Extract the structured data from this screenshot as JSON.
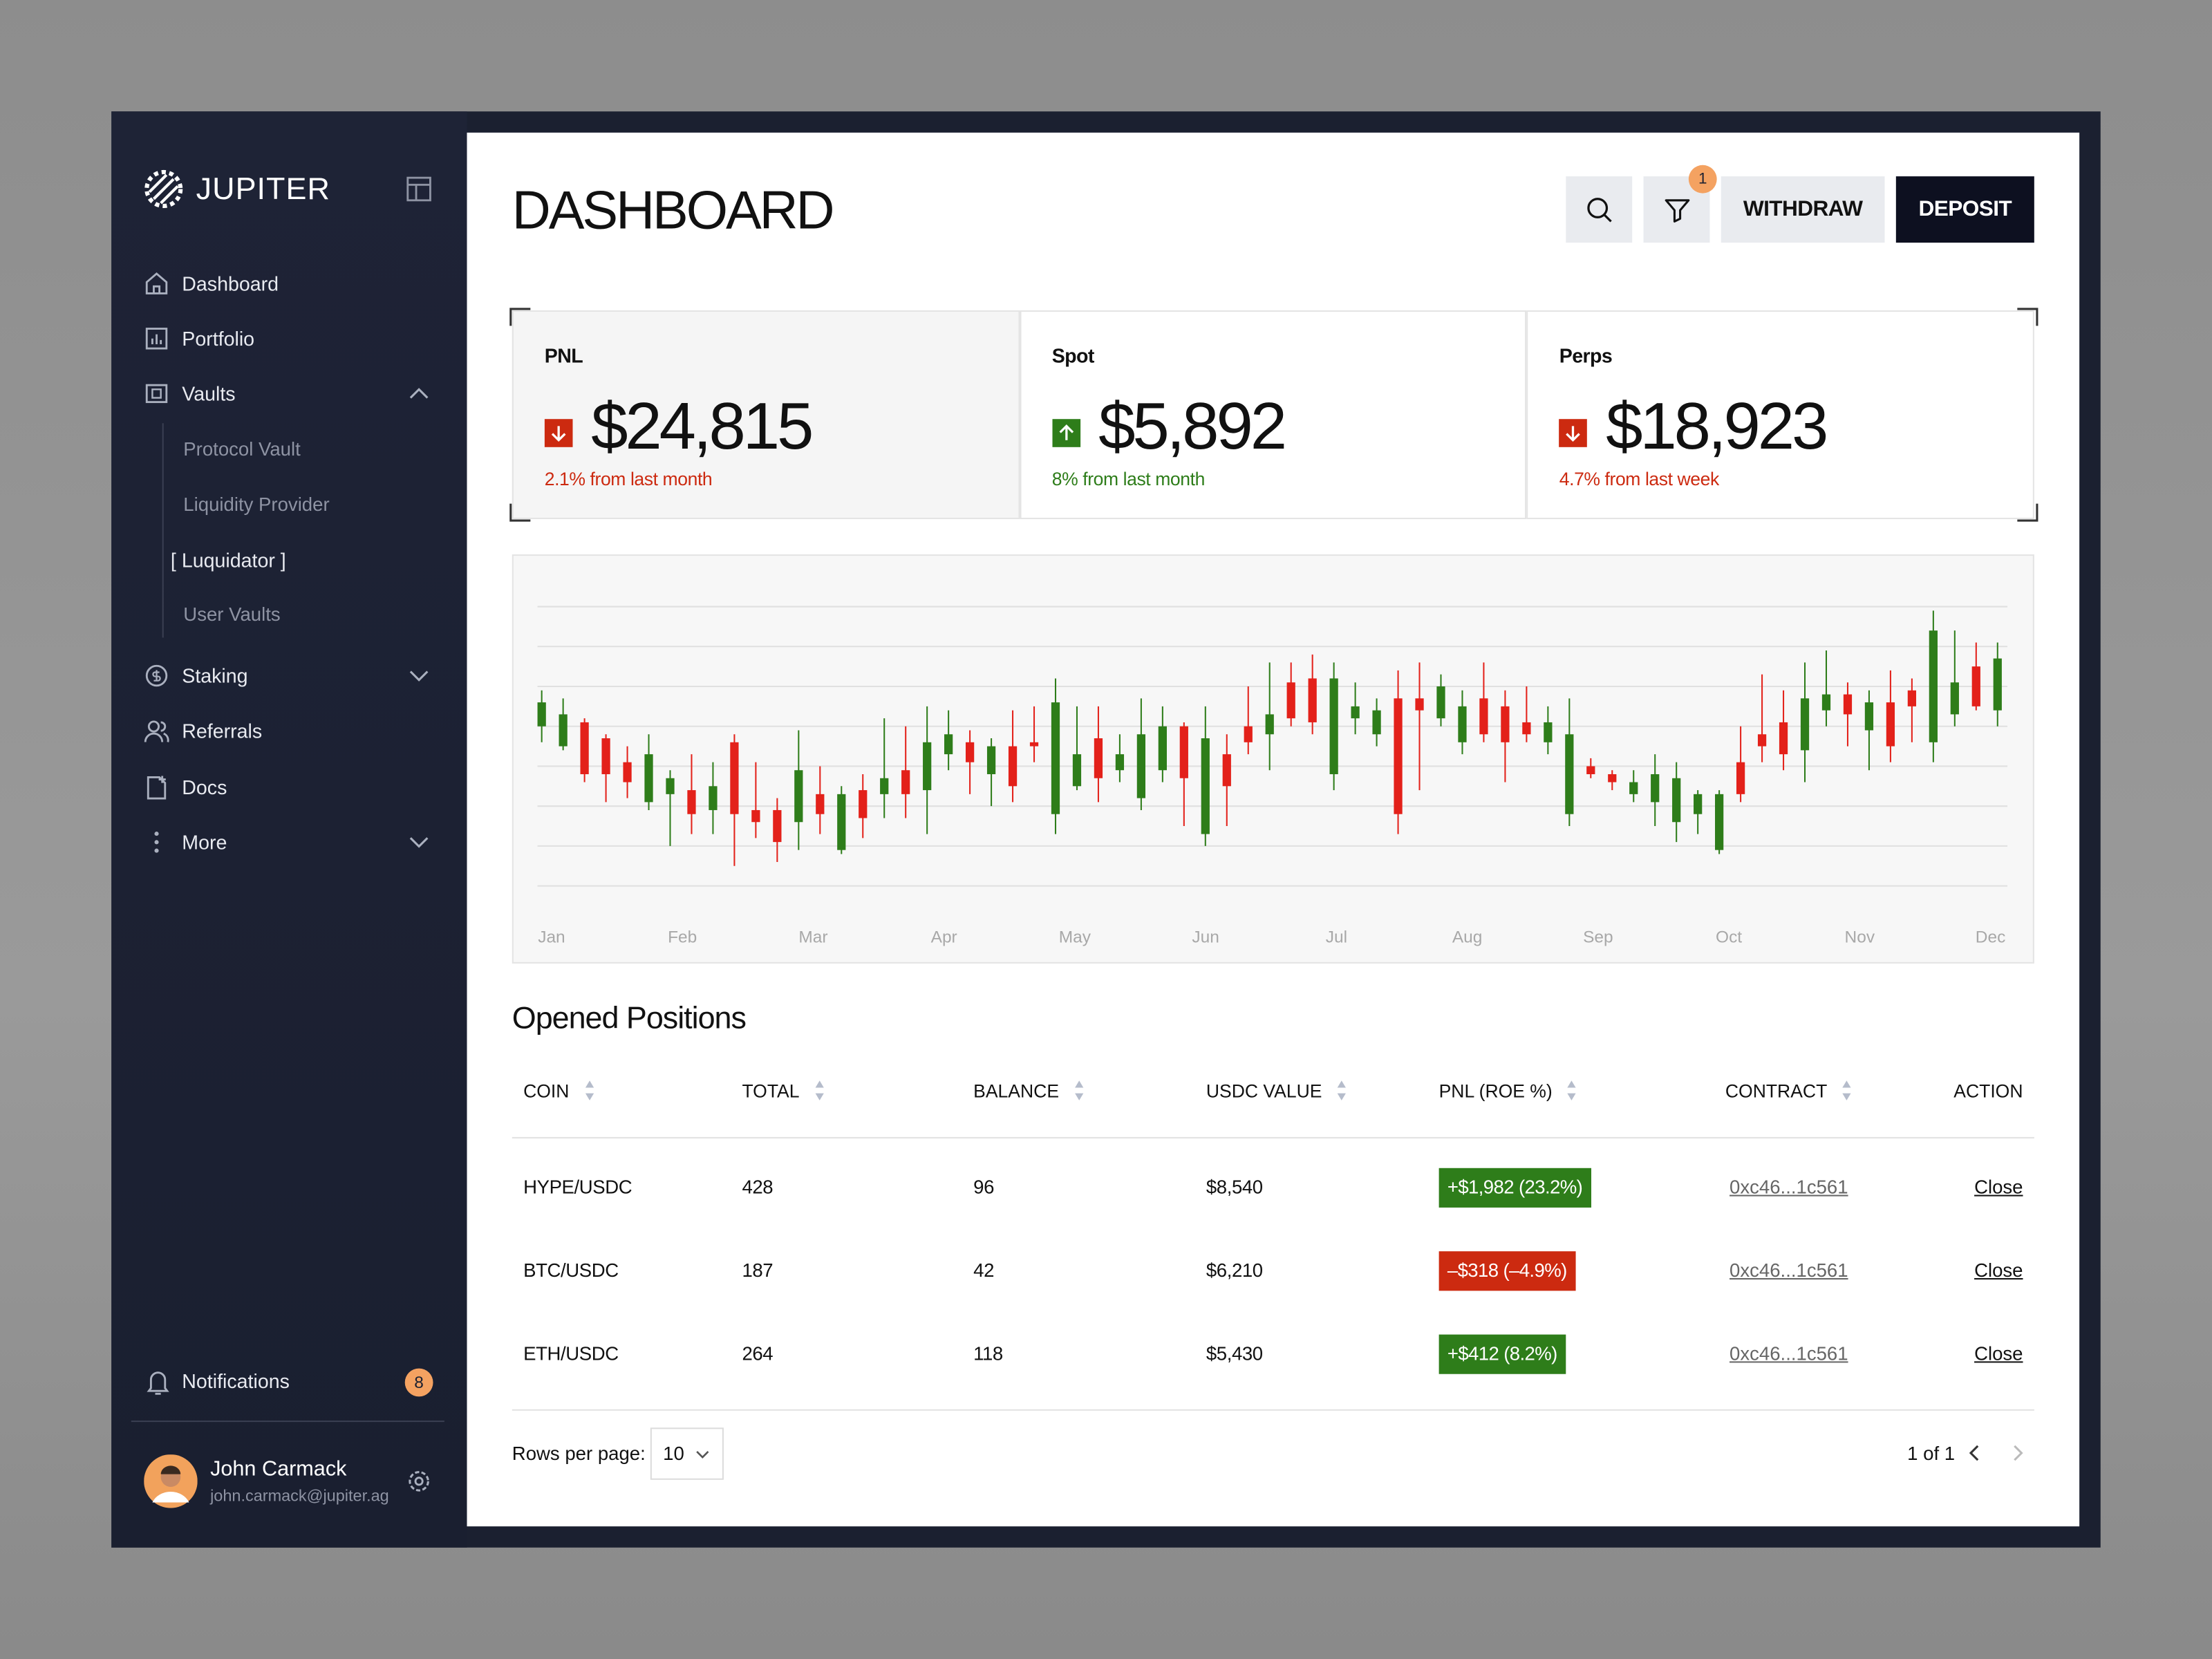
{
  "sidebar": {
    "brand": "JUPITER",
    "nav": [
      {
        "label": "Dashboard",
        "icon": "home"
      },
      {
        "label": "Portfolio",
        "icon": "chart"
      },
      {
        "label": "Vaults",
        "icon": "vault",
        "chevron": "up"
      },
      {
        "label": "Protocol Vault",
        "sub": true
      },
      {
        "label": "Liquidity Provider",
        "sub": true
      },
      {
        "label": "[ Luquidator ]",
        "sub": true,
        "active": true
      },
      {
        "label": "User Vaults",
        "sub": true
      },
      {
        "label": "Staking",
        "icon": "coin",
        "chevron": "down"
      },
      {
        "label": "Referrals",
        "icon": "users"
      },
      {
        "label": "Docs",
        "icon": "doc"
      },
      {
        "label": "More",
        "icon": "dots",
        "chevron": "down"
      }
    ],
    "notifications": {
      "label": "Notifications",
      "count": "8"
    },
    "user": {
      "name": "John Carmack",
      "email": "john.carmack@jupiter.ag"
    }
  },
  "header": {
    "title": "DASHBOARD",
    "filter_badge": "1",
    "withdraw": "WITHDRAW",
    "deposit": "DEPOSIT"
  },
  "stats": [
    {
      "label": "PNL",
      "value": "$24,815",
      "change": "2.1% from last month",
      "direction": "down"
    },
    {
      "label": "Spot",
      "value": "$5,892",
      "change": "8% from last month",
      "direction": "up"
    },
    {
      "label": "Perps",
      "value": "$18,923",
      "change": "4.7% from last week",
      "direction": "down"
    }
  ],
  "chart_data": {
    "type": "candlestick",
    "x_labels": [
      "Jan",
      "Feb",
      "Mar",
      "Apr",
      "May",
      "Jun",
      "Jul",
      "Aug",
      "Sep",
      "Oct",
      "Nov",
      "Dec"
    ],
    "open": [
      40,
      35,
      41,
      37,
      31,
      21,
      23,
      24,
      19,
      36,
      19,
      19,
      16,
      23,
      9,
      24,
      23,
      29,
      24,
      33,
      36,
      28,
      35,
      36,
      18,
      25,
      37,
      29,
      22,
      29,
      40,
      13,
      33,
      40,
      38,
      51,
      52,
      28,
      42,
      38,
      47,
      47,
      42,
      36,
      47,
      45,
      41,
      36,
      18,
      30,
      28,
      23,
      21,
      16,
      18,
      9,
      31,
      38,
      41,
      34,
      44,
      48,
      39,
      46,
      49,
      36,
      43,
      55,
      44
    ],
    "high": [
      49,
      47,
      42,
      38,
      35,
      38,
      29,
      33,
      31,
      38,
      31,
      22,
      39,
      30,
      25,
      28,
      42,
      40,
      45,
      44,
      39,
      37,
      44,
      45,
      52,
      45,
      45,
      38,
      47,
      45,
      41,
      45,
      38,
      50,
      56,
      56,
      58,
      56,
      51,
      47,
      54,
      56,
      53,
      49,
      56,
      49,
      50,
      45,
      47,
      32,
      29,
      29,
      33,
      31,
      24,
      24,
      40,
      53,
      49,
      56,
      59,
      51,
      49,
      54,
      52,
      69,
      64,
      61,
      61
    ],
    "low": [
      36,
      34,
      26,
      21,
      22,
      19,
      10,
      13,
      13,
      5,
      12,
      6,
      9,
      13,
      8,
      12,
      17,
      17,
      13,
      29,
      23,
      20,
      21,
      31,
      13,
      24,
      21,
      26,
      19,
      26,
      15,
      10,
      15,
      33,
      29,
      40,
      38,
      24,
      38,
      35,
      13,
      24,
      40,
      33,
      36,
      26,
      36,
      33,
      15,
      27,
      24,
      21,
      15,
      11,
      13,
      8,
      21,
      31,
      29,
      26,
      40,
      35,
      29,
      31,
      36,
      31,
      40,
      44,
      40
    ],
    "close": [
      46,
      43,
      28,
      28,
      26,
      33,
      27,
      18,
      25,
      18,
      16,
      11,
      29,
      18,
      23,
      17,
      27,
      23,
      36,
      38,
      31,
      35,
      25,
      35,
      46,
      33,
      27,
      33,
      38,
      40,
      27,
      37,
      25,
      36,
      43,
      42,
      41,
      52,
      45,
      44,
      18,
      44,
      50,
      45,
      38,
      36,
      38,
      41,
      38,
      28,
      26,
      26,
      28,
      27,
      23,
      23,
      23,
      35,
      33,
      47,
      48,
      43,
      46,
      35,
      45,
      64,
      51,
      45,
      57
    ],
    "up_color": "#2e7d1a",
    "down_color": "#e3211a",
    "ylim": [
      0,
      70
    ],
    "yticks": [
      0,
      10,
      20,
      30,
      40,
      50,
      60,
      70
    ],
    "grid": true
  },
  "positions": {
    "title": "Opened Positions",
    "columns": [
      "COIN",
      "TOTAL",
      "BALANCE",
      "USDC VALUE",
      "PNL (ROE %)",
      "CONTRACT",
      "ACTION"
    ],
    "rows": [
      [
        "HYPE/USDC",
        "428",
        "96",
        "$8,540",
        "+$1,982 (23.2%)",
        "0xc46...1c561",
        "Close"
      ],
      [
        "BTC/USDC",
        "187",
        "42",
        "$6,210",
        "–$318 (–4.9%)",
        "0xc46...1c561",
        "Close"
      ],
      [
        "ETH/USDC",
        "264",
        "118",
        "$5,430",
        "+$412 (8.2%)",
        "0xc46...1c561",
        "Close"
      ]
    ]
  },
  "pagination": {
    "rows_label": "Rows per page:",
    "rows_value": "10",
    "page": "1 of 1"
  }
}
